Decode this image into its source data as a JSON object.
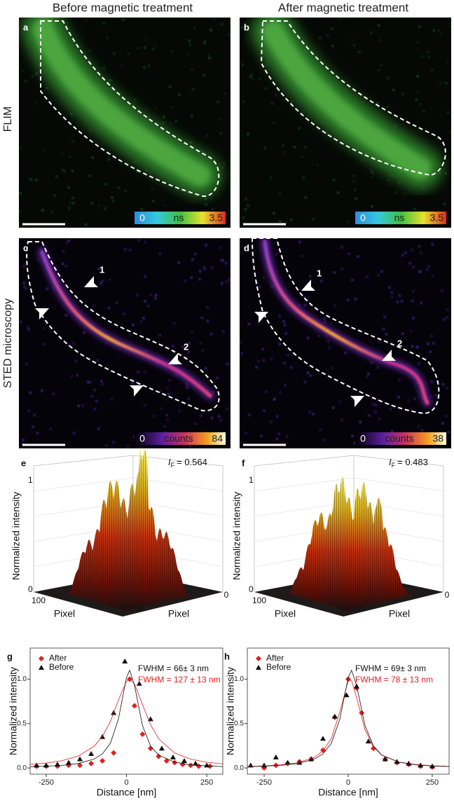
{
  "headers": [
    "Before magnetic treatment",
    "After magnetic treatment"
  ],
  "row_labels": [
    "FLIM",
    "STED microscopy"
  ],
  "image_panels": [
    {
      "letter": "a",
      "colorbar": {
        "min": "0",
        "unit": "ns",
        "max": "3.5"
      }
    },
    {
      "letter": "b",
      "colorbar": {
        "min": "0",
        "unit": "ns",
        "max": "3.5"
      }
    },
    {
      "letter": "c",
      "colorbar": {
        "min": "0",
        "unit": "counts",
        "max": "84"
      },
      "arrow_labels": [
        "1",
        "2"
      ]
    },
    {
      "letter": "d",
      "colorbar": {
        "min": "0",
        "unit": "counts",
        "max": "38"
      },
      "arrow_labels": [
        "1",
        "2"
      ]
    }
  ],
  "surface_panels": [
    {
      "letter": "e",
      "z_label": "Normalized intensity",
      "z_top": "1",
      "z_bottom": "0",
      "axis1_start": "100",
      "axis1_label": "Pixel",
      "axis1_end": "0",
      "axis2_start": "100",
      "axis2_label": "Pixel",
      "axis2_end": "0",
      "if_symbol": "I",
      "if_subscript": "F",
      "if_value": "= 0.564"
    },
    {
      "letter": "f",
      "z_label": "Normalized intensity",
      "z_top": "1",
      "z_bottom": "0",
      "axis1_start": "100",
      "axis1_label": "Pixel",
      "axis1_end": "0",
      "axis2_start": "100",
      "axis2_label": "Pixel",
      "axis2_end": "0",
      "if_symbol": "I",
      "if_subscript": "F",
      "if_value": "= 0.483"
    }
  ],
  "chart_data": [
    {
      "type": "scatter",
      "panel": "g",
      "xlabel": "Distance [nm]",
      "ylabel": "Normalized intensity",
      "xlim": [
        -300,
        300
      ],
      "ylim": [
        -0.07,
        1.35
      ],
      "xticks": [
        -250,
        0,
        250
      ],
      "yticks": [
        {
          "value": 0,
          "label": "0.0"
        },
        0.5,
        {
          "value": 1,
          "label": "1.0"
        }
      ],
      "series": [
        {
          "name": "After",
          "color": "#e02020",
          "marker": "diamond",
          "x": [
            -280,
            -250,
            -215,
            -180,
            -145,
            -110,
            -75,
            -40,
            10,
            25,
            50,
            75,
            100,
            125,
            150,
            175,
            200,
            225,
            260
          ],
          "values": [
            0.02,
            0.02,
            0.02,
            0.03,
            0.03,
            0.05,
            0.08,
            0.17,
            1.0,
            0.7,
            0.38,
            0.22,
            0.13,
            0.08,
            0.06,
            0.04,
            0.03,
            0.02,
            0.02
          ]
        },
        {
          "name": "Before",
          "color": "#111111",
          "marker": "triangle",
          "x": [
            -280,
            -250,
            -215,
            -180,
            -145,
            -110,
            -75,
            -40,
            -5,
            40,
            75,
            110,
            145,
            180,
            215,
            250
          ],
          "values": [
            0.03,
            0.03,
            0.04,
            0.06,
            0.1,
            0.16,
            0.35,
            0.62,
            1.2,
            0.95,
            0.55,
            0.22,
            0.12,
            0.08,
            0.05,
            0.03
          ]
        },
        {
          "color": "#e02020",
          "marker": "line",
          "x": [
            -300,
            -250,
            -200,
            -150,
            -100,
            -75,
            -50,
            -25,
            0,
            10,
            25,
            50,
            75,
            100,
            150,
            200,
            250,
            300
          ],
          "values": [
            0.04,
            0.055,
            0.083,
            0.134,
            0.247,
            0.355,
            0.524,
            0.764,
            0.975,
            1.0,
            0.946,
            0.713,
            0.485,
            0.329,
            0.168,
            0.099,
            0.065,
            0.045
          ]
        },
        {
          "color": "#111111",
          "marker": "line",
          "x": [
            -300,
            -250,
            -200,
            -150,
            -100,
            -75,
            -50,
            -25,
            0,
            10,
            25,
            50,
            75,
            100,
            150,
            200,
            250,
            300
          ],
          "values": [
            0.0139,
            0.0196,
            0.0297,
            0.0502,
            0.101,
            0.159,
            0.279,
            0.55,
            1.017,
            1.1,
            0.929,
            0.476,
            0.247,
            0.145,
            0.0647,
            0.0361,
            0.0229,
            0.0158
          ]
        }
      ],
      "annotations": [
        {
          "text": "FWHM = 66± 3 nm",
          "color": "#111111"
        },
        {
          "text": "FWHM = 127 ± 13 nm",
          "color": "#e02020"
        }
      ]
    },
    {
      "type": "scatter",
      "panel": "h",
      "xlabel": "Distance [nm]",
      "ylabel": "Normalized intensity",
      "xlim": [
        -300,
        300
      ],
      "ylim": [
        -0.07,
        1.35
      ],
      "xticks": [
        -250,
        0,
        250
      ],
      "yticks": [
        {
          "value": 0,
          "label": "0.0"
        },
        0.5,
        {
          "value": 1,
          "label": "1.0"
        }
      ],
      "series": [
        {
          "name": "After",
          "color": "#e02020",
          "marker": "diamond",
          "x": [
            -250,
            -215,
            -180,
            -145,
            -110,
            -75,
            -40,
            0,
            25,
            40,
            75,
            110,
            145,
            180,
            215,
            250
          ],
          "values": [
            0.0,
            0.03,
            0.05,
            0.07,
            0.1,
            0.2,
            0.57,
            1.0,
            0.9,
            0.62,
            0.22,
            0.1,
            0.06,
            0.04,
            0.02,
            0.01
          ]
        },
        {
          "name": "Before",
          "color": "#111111",
          "marker": "triangle",
          "x": [
            -290,
            -250,
            -215,
            -180,
            -145,
            -110,
            -75,
            -40,
            -5,
            25,
            60,
            110,
            145,
            180,
            215,
            250
          ],
          "values": [
            0.03,
            0.03,
            0.12,
            0.06,
            0.06,
            0.1,
            0.33,
            0.58,
            0.82,
            0.92,
            0.3,
            0.1,
            0.07,
            0.05,
            0.03,
            0.02
          ]
        },
        {
          "color": "#e02020",
          "marker": "line",
          "x": [
            -300,
            -250,
            -200,
            -150,
            -100,
            -75,
            -50,
            -25,
            0,
            10,
            25,
            50,
            75,
            100,
            150,
            200,
            250,
            300
          ],
          "values": [
            0.0161,
            0.0228,
            0.035,
            0.0595,
            0.121,
            0.192,
            0.334,
            0.628,
            0.984,
            0.984,
            0.792,
            0.429,
            0.237,
            0.144,
            0.0676,
            0.0385,
            0.0247,
            0.0172
          ]
        },
        {
          "color": "#111111",
          "marker": "line",
          "x": [
            -300,
            -250,
            -200,
            -150,
            -100,
            -75,
            -50,
            -25,
            0,
            10,
            25,
            50,
            75,
            100,
            150,
            200,
            250,
            300
          ],
          "values": [
            0.0139,
            0.0196,
            0.0297,
            0.0502,
            0.101,
            0.159,
            0.279,
            0.55,
            1.017,
            1.1,
            0.929,
            0.476,
            0.247,
            0.145,
            0.0647,
            0.0361,
            0.0229,
            0.0158
          ]
        }
      ],
      "annotations": [
        {
          "text": "FWHM = 69± 3 nm",
          "color": "#111111"
        },
        {
          "text": "FWHM = 78 ± 13 nm",
          "color": "#e02020"
        }
      ]
    }
  ]
}
